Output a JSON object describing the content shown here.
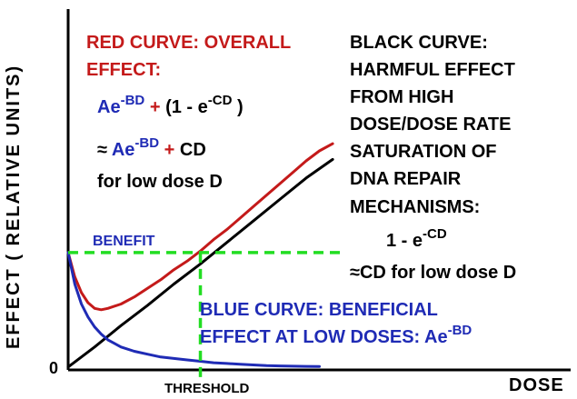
{
  "chart_data": {
    "type": "line",
    "xlabel": "DOSE",
    "ylabel": "EFFECT ( RELATIVE UNITS)",
    "origin_label": "0",
    "threshold_label": "THRESHOLD",
    "benefit_label": "BENEFIT",
    "series": [
      {
        "name": "RED CURVE",
        "color": "#c41a1a",
        "x": [
          0.0,
          0.025,
          0.05,
          0.075,
          0.1,
          0.125,
          0.15,
          0.2,
          0.25,
          0.3,
          0.35,
          0.4,
          0.45,
          0.5,
          0.55,
          0.6,
          0.65,
          0.7,
          0.75,
          0.8,
          0.85,
          0.9,
          0.95,
          1.0
        ],
        "y": [
          0.8,
          0.63,
          0.52,
          0.45,
          0.41,
          0.4,
          0.41,
          0.44,
          0.49,
          0.55,
          0.61,
          0.68,
          0.74,
          0.81,
          0.89,
          0.96,
          1.04,
          1.12,
          1.2,
          1.28,
          1.36,
          1.44,
          1.51,
          1.56
        ]
      },
      {
        "name": "BLACK CURVE",
        "color": "#000000",
        "x": [
          0.0,
          0.1,
          0.2,
          0.3,
          0.4,
          0.5,
          0.6,
          0.7,
          0.8,
          0.9,
          1.0
        ],
        "y": [
          0.0,
          0.14,
          0.29,
          0.43,
          0.58,
          0.72,
          0.87,
          1.02,
          1.17,
          1.32,
          1.45
        ]
      },
      {
        "name": "BLUE CURVE",
        "color": "#1f2bb5",
        "x": [
          0.0,
          0.025,
          0.05,
          0.075,
          0.1,
          0.125,
          0.15,
          0.2,
          0.25,
          0.3,
          0.35,
          0.4,
          0.45,
          0.5,
          0.55,
          0.6,
          0.65,
          0.7,
          0.75,
          0.8,
          0.85,
          0.9,
          0.95
        ],
        "y": [
          0.8,
          0.58,
          0.44,
          0.35,
          0.28,
          0.23,
          0.19,
          0.14,
          0.11,
          0.09,
          0.07,
          0.06,
          0.05,
          0.04,
          0.03,
          0.025,
          0.02,
          0.015,
          0.01,
          0.008,
          0.006,
          0.005,
          0.004
        ]
      }
    ],
    "threshold": {
      "x": 0.5,
      "y": 0.8,
      "color": "#22dd22"
    },
    "xlim": [
      0,
      1.9
    ],
    "ylim": [
      -0.02,
      2.5
    ],
    "grid": false,
    "legend": "none"
  },
  "annotations": {
    "red_title_1": "RED CURVE: OVERALL",
    "red_title_2": "EFFECT:",
    "red_formula_1": {
      "a": "Ae",
      "a_exp": "-BD",
      "plus": "+",
      "b": "(1 - e",
      "b_exp": "-CD",
      "b_end": ")"
    },
    "red_formula_2": {
      "approx": "≈",
      "a": "Ae",
      "a_exp": "-BD",
      "plus": "+",
      "b": "CD"
    },
    "red_note": "for low dose D",
    "black_lines": [
      "BLACK CURVE:",
      "HARMFUL EFFECT",
      "FROM HIGH",
      "DOSE/DOSE RATE",
      "SATURATION OF",
      "DNA REPAIR",
      "MECHANISMS:"
    ],
    "black_formula": {
      "a": "1 - e",
      "a_exp": "-CD"
    },
    "black_approx": "≈CD  for low dose D",
    "blue_title_1": "BLUE CURVE: BENEFICIAL",
    "blue_title_2": "EFFECT AT LOW DOSES: Ae",
    "blue_exp": "-BD"
  }
}
